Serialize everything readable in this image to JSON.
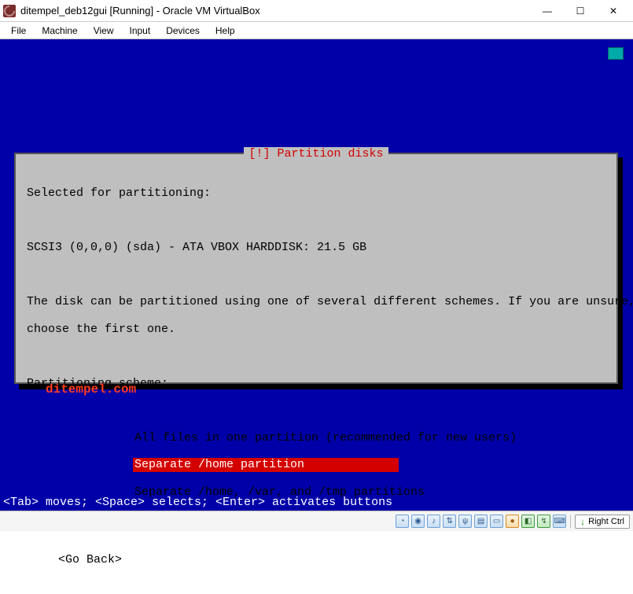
{
  "window": {
    "title": "ditempel_deb12gui [Running] - Oracle VM VirtualBox"
  },
  "menubar": [
    "File",
    "Machine",
    "View",
    "Input",
    "Devices",
    "Help"
  ],
  "dialog": {
    "title_label": "[!] Partition disks",
    "line_selected": "Selected for partitioning:",
    "line_disk": "SCSI3 (0,0,0) (sda) - ATA VBOX HARDDISK: 21.5 GB",
    "line_desc1": "The disk can be partitioned using one of several different schemes. If you are unsure,",
    "line_desc2": "choose the first one.",
    "line_scheme": "Partitioning scheme:",
    "options": [
      "All files in one partition (recommended for new users)",
      "Separate /home partition",
      "Separate /home, /var, and /tmp partitions"
    ],
    "selected_index": 1,
    "go_back": "<Go Back>"
  },
  "watermark": "ditempel.com",
  "hint": "<Tab> moves; <Space> selects; <Enter> activates buttons",
  "statusbar": {
    "icons": [
      {
        "name": "harddisk-icon",
        "glyph": "◔",
        "cls": ""
      },
      {
        "name": "optical-icon",
        "glyph": "◉",
        "cls": ""
      },
      {
        "name": "audio-icon",
        "glyph": "♪",
        "cls": ""
      },
      {
        "name": "network-icon",
        "glyph": "⇅",
        "cls": ""
      },
      {
        "name": "usb-icon",
        "glyph": "ψ",
        "cls": ""
      },
      {
        "name": "shared-folder-icon",
        "glyph": "▤",
        "cls": ""
      },
      {
        "name": "display-icon",
        "glyph": "▭",
        "cls": ""
      },
      {
        "name": "recording-icon",
        "glyph": "●",
        "cls": "orange"
      },
      {
        "name": "processor-icon",
        "glyph": "◧",
        "cls": "green"
      },
      {
        "name": "mouse-icon",
        "glyph": "↯",
        "cls": "green"
      },
      {
        "name": "keyboard-icon",
        "glyph": "⌨",
        "cls": ""
      }
    ],
    "host_key": "Right Ctrl"
  },
  "colors": {
    "vm_bg": "#0000a8",
    "dialog_bg": "#bfbfbf",
    "dialog_border": "#555555",
    "title_red": "#d40000",
    "select_bg": "#d40000",
    "select_fg": "#ffffff",
    "watermark": "#ff3b1f",
    "hint_fg": "#ffffff"
  }
}
